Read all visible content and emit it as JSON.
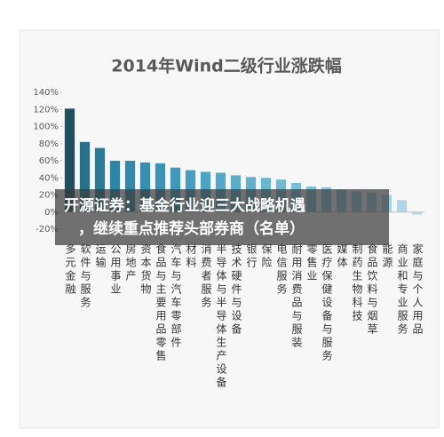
{
  "chart_data": {
    "type": "bar",
    "title": "2014年Wind二级行业涨跌幅",
    "categories": [
      "多元金融",
      "软件与服务",
      "运输",
      "公用事业",
      "房地产",
      "资本货物",
      "食品与主要用品零售",
      "汽车与汽车零部件",
      "材料",
      "消费者服务",
      "半导体与半导体生产设备",
      "技术硬件与设备",
      "银行",
      "保险",
      "电信服务",
      "耐用消费品与服装",
      "零售业",
      "医疗保健设备与服务",
      "媒体",
      "制药生物科技",
      "食品饮料与烟草",
      "能源",
      "商业和专业服务",
      "家庭与个人用品"
    ],
    "values": [
      121,
      82,
      75,
      60,
      60,
      58,
      57,
      52,
      49,
      47,
      46,
      43,
      41,
      40,
      38,
      34,
      30,
      29,
      26,
      24,
      23,
      20,
      14,
      -3
    ],
    "colors": [
      "#1f5060",
      "#27718a",
      "#2b7b98",
      "#2f85a5",
      "#3289ab",
      "#368fb1",
      "#3a94b6",
      "#4099bb",
      "#479ec0",
      "#4da3c4",
      "#55a8c7",
      "#5cadca",
      "#63b1cd",
      "#6ab5d0",
      "#72b9d3",
      "#7abdd6",
      "#82c1d9",
      "#8ac5db",
      "#91c8de",
      "#98cbe0",
      "#9fcfe2",
      "#a6d2e5",
      "#aed6e8",
      "#b6daea"
    ],
    "ylim": [
      -20,
      140
    ],
    "yticks": [
      {
        "value": -20,
        "label": "-20%"
      },
      {
        "value": 0,
        "label": "0%"
      },
      {
        "value": 20,
        "label": "20%"
      },
      {
        "value": 40,
        "label": "40%"
      },
      {
        "value": 60,
        "label": "60%"
      },
      {
        "value": 80,
        "label": "80%"
      },
      {
        "value": 100,
        "label": "100%"
      },
      {
        "value": 120,
        "label": "120%"
      },
      {
        "value": 140,
        "label": "140%"
      }
    ],
    "grid": false
  },
  "banner": {
    "lines": [
      "开源证券：基金行业迎三大战略机遇",
      "，继续重点推荐头部券商（名单）"
    ]
  }
}
